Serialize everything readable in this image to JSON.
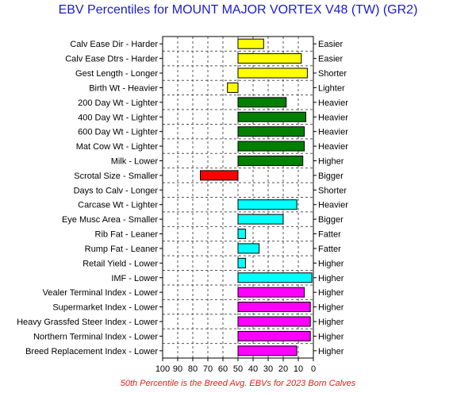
{
  "chart_data": {
    "type": "bar",
    "orientation": "horizontal",
    "title": "EBV Percentiles for MOUNT MAJOR VORTEX V48 (TW) (GR2)",
    "footnote": "50th Percentile is the Breed Avg. EBVs for 2023 Born Calves",
    "xlim": [
      100,
      0
    ],
    "x_direction": "reversed",
    "baseline": 50,
    "grid": true,
    "x_ticks": [
      "100",
      "90",
      "80",
      "70",
      "60",
      "50",
      "40",
      "30",
      "20",
      "10",
      "0"
    ],
    "rows": [
      {
        "left_label": "Calv Ease Dir - Harder",
        "right_label": "Easier",
        "value": 33,
        "color": "#ffff00"
      },
      {
        "left_label": "Calv Ease Dtrs - Harder",
        "right_label": "Easier",
        "value": 8,
        "color": "#ffff00"
      },
      {
        "left_label": "Gest Length - Longer",
        "right_label": "Shorter",
        "value": 4,
        "color": "#ffff00"
      },
      {
        "left_label": "Birth Wt - Heavier",
        "right_label": "Lighter",
        "value": 57,
        "color": "#ffff00"
      },
      {
        "left_label": "200 Day Wt - Lighter",
        "right_label": "Heavier",
        "value": 18,
        "color": "#008000"
      },
      {
        "left_label": "400 Day Wt - Lighter",
        "right_label": "Heavier",
        "value": 5,
        "color": "#008000"
      },
      {
        "left_label": "600 Day Wt - Lighter",
        "right_label": "Heavier",
        "value": 6,
        "color": "#008000"
      },
      {
        "left_label": "Mat Cow Wt - Lighter",
        "right_label": "Heavier",
        "value": 6,
        "color": "#008000"
      },
      {
        "left_label": "Milk - Lower",
        "right_label": "Higher",
        "value": 7,
        "color": "#008000"
      },
      {
        "left_label": "Scrotal Size - Smaller",
        "right_label": "Bigger",
        "value": 75,
        "color": "#ff0000"
      },
      {
        "left_label": "Days to Calv - Longer",
        "right_label": "Shorter",
        "value": null,
        "color": "#ff0000"
      },
      {
        "left_label": "Carcase Wt - Lighter",
        "right_label": "Heavier",
        "value": 11,
        "color": "#00ffff"
      },
      {
        "left_label": "Eye Musc Area - Smaller",
        "right_label": "Bigger",
        "value": 20,
        "color": "#00ffff"
      },
      {
        "left_label": "Rib Fat - Leaner",
        "right_label": "Fatter",
        "value": 45,
        "color": "#00ffff"
      },
      {
        "left_label": "Rump Fat - Leaner",
        "right_label": "Fatter",
        "value": 36,
        "color": "#00ffff"
      },
      {
        "left_label": "Retail Yield - Lower",
        "right_label": "Higher",
        "value": 45,
        "color": "#00ffff"
      },
      {
        "left_label": "IMF - Lower",
        "right_label": "Higher",
        "value": 1,
        "color": "#00ffff"
      },
      {
        "left_label": "Vealer Terminal Index - Lower",
        "right_label": "Higher",
        "value": 6,
        "color": "#ff00ff"
      },
      {
        "left_label": "Supermarket Index - Lower",
        "right_label": "Higher",
        "value": 2,
        "color": "#ff00ff"
      },
      {
        "left_label": "Heavy Grassfed Steer Index - Lower",
        "right_label": "Higher",
        "value": 2,
        "color": "#ff00ff"
      },
      {
        "left_label": "Northern Terminal Index - Lower",
        "right_label": "Higher",
        "value": 2,
        "color": "#ff00ff"
      },
      {
        "left_label": "Breed Replacement Index - Lower",
        "right_label": "Higher",
        "value": 11,
        "color": "#ff00ff"
      }
    ]
  }
}
